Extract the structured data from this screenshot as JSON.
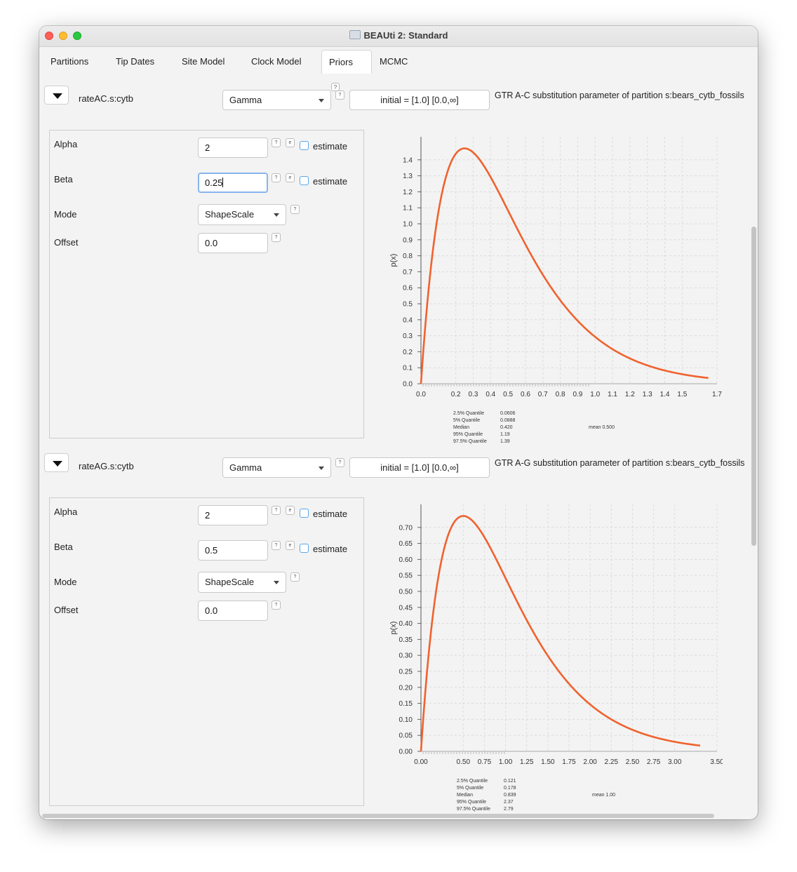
{
  "window": {
    "title": "BEAUti 2: Standard"
  },
  "tabs": [
    {
      "label": "Partitions"
    },
    {
      "label": "Tip Dates"
    },
    {
      "label": "Site Model"
    },
    {
      "label": "Clock Model"
    },
    {
      "label": "Priors",
      "active": true
    },
    {
      "label": "MCMC"
    }
  ],
  "help_glyph": "?",
  "dot_glyph": "e",
  "colors": {
    "curve": "#f0622e",
    "focus": "#86b5ee",
    "checkbox": "#5aa7e8"
  },
  "priors": [
    {
      "name": "rateAC.s:cytb",
      "distribution": "Gamma",
      "initial": "initial = [1.0] [0.0,∞]",
      "description": "GTR A-C substitution parameter of partition s:bears_cytb_fossils",
      "alpha_label": "Alpha",
      "alpha_value": "2",
      "beta_label": "Beta",
      "beta_value": "0.25",
      "mode_label": "Mode",
      "mode_value": "ShapeScale",
      "offset_label": "Offset",
      "offset_value": "0.0",
      "estimate_label": "estimate",
      "stats": {
        "q025_label": "2.5% Quantile",
        "q025": "0.0606",
        "q05_label": "5% Quantile",
        "q05": "0.0888",
        "median_label": "Median",
        "median": "0.420",
        "q95_label": "95% Quantile",
        "q95": "1.19",
        "q975_label": "97.5% Quantile",
        "q975": "1.39",
        "mean": "mean 0.500"
      }
    },
    {
      "name": "rateAG.s:cytb",
      "distribution": "Gamma",
      "initial": "initial = [1.0] [0.0,∞]",
      "description": "GTR A-G substitution parameter of partition s:bears_cytb_fossils",
      "alpha_label": "Alpha",
      "alpha_value": "2",
      "beta_label": "Beta",
      "beta_value": "0.5",
      "mode_label": "Mode",
      "mode_value": "ShapeScale",
      "offset_label": "Offset",
      "offset_value": "0.0",
      "estimate_label": "estimate",
      "stats": {
        "q025_label": "2.5% Quantile",
        "q025": "0.121",
        "q05_label": "5% Quantile",
        "q05": "0.178",
        "median_label": "Median",
        "median": "0.839",
        "q95_label": "95% Quantile",
        "q95": "2.37",
        "q975_label": "97.5% Quantile",
        "q975": "2.79",
        "mean": "mean 1.00"
      }
    }
  ],
  "chart_data": [
    {
      "type": "line",
      "ylabel": "p(x)",
      "xlim": [
        0.0,
        1.7
      ],
      "ylim": [
        0.0,
        1.5
      ],
      "x_ticks": [
        "0.0",
        "0.2",
        "0.3",
        "0.4",
        "0.5",
        "0.6",
        "0.7",
        "0.8",
        "0.9",
        "1.0",
        "1.1",
        "1.2",
        "1.3",
        "1.4",
        "1.5",
        "1.7"
      ],
      "y_ticks": [
        "0.0",
        "0.1",
        "0.2",
        "0.3",
        "0.4",
        "0.5",
        "0.6",
        "0.7",
        "0.8",
        "0.9",
        "1.0",
        "1.1",
        "1.2",
        "1.3",
        "1.4"
      ],
      "series": [
        {
          "shape": 2,
          "scale": 0.25,
          "x_end": 1.65,
          "x": [
            0.0,
            0.05,
            0.1,
            0.15,
            0.2,
            0.25,
            0.3,
            0.4,
            0.5,
            0.6,
            0.7,
            0.8,
            0.9,
            1.0,
            1.2,
            1.4,
            1.65
          ],
          "y": [
            0.0,
            0.655,
            1.073,
            1.318,
            1.438,
            1.472,
            1.446,
            1.293,
            1.083,
            0.871,
            0.684,
            0.525,
            0.398,
            0.293,
            0.158,
            0.083,
            0.036
          ]
        }
      ],
      "grid": true
    },
    {
      "type": "line",
      "ylabel": "p(x)",
      "xlim": [
        0.0,
        3.5
      ],
      "ylim": [
        0.0,
        0.75
      ],
      "x_ticks": [
        "0.00",
        "0.50",
        "0.75",
        "1.00",
        "1.25",
        "1.50",
        "1.75",
        "2.00",
        "2.25",
        "2.50",
        "2.75",
        "3.00",
        "3.50"
      ],
      "y_ticks": [
        "0.00",
        "0.05",
        "0.10",
        "0.15",
        "0.20",
        "0.25",
        "0.30",
        "0.35",
        "0.40",
        "0.45",
        "0.50",
        "0.55",
        "0.60",
        "0.65",
        "0.70"
      ],
      "series": [
        {
          "shape": 2,
          "scale": 0.5,
          "x_end": 3.3,
          "x": [
            0.0,
            0.1,
            0.2,
            0.3,
            0.4,
            0.5,
            0.75,
            1.0,
            1.25,
            1.5,
            2.0,
            2.5,
            3.0,
            3.3
          ],
          "y": [
            0.0,
            0.327,
            0.536,
            0.659,
            0.719,
            0.736,
            0.669,
            0.541,
            0.41,
            0.299,
            0.147,
            0.067,
            0.03,
            0.018
          ]
        }
      ],
      "grid": true
    }
  ]
}
